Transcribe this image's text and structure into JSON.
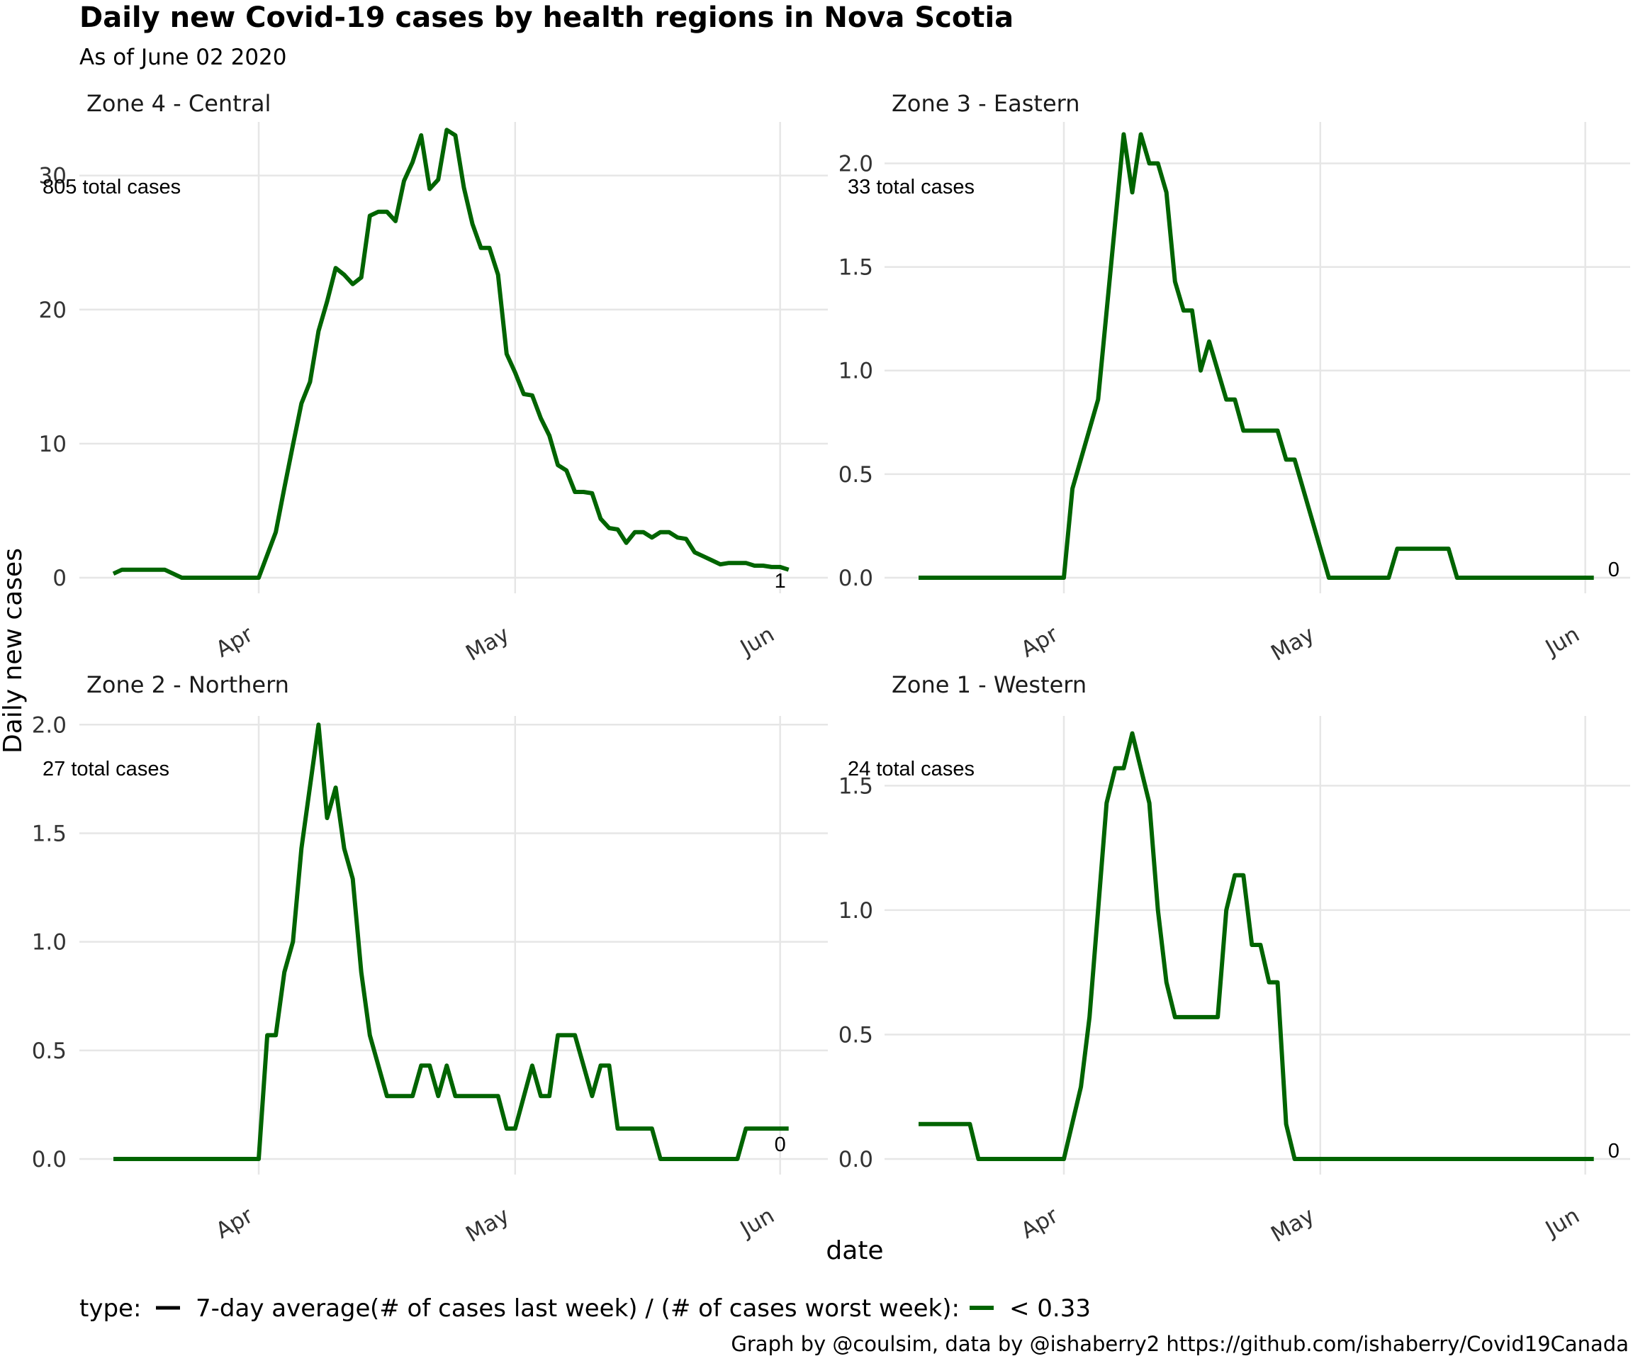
{
  "title": "Daily new Covid-19 cases by health regions in Nova Scotia",
  "subtitle": "As of June 02 2020",
  "ylabel": "Daily new cases",
  "xlabel": "date",
  "caption": "Graph by @coulsim, data by @ishaberry2 https://github.com/ishaberry/Covid19Canada",
  "legend": {
    "type_title": "type:",
    "type_label": "7-day average",
    "ratio_title": "(# of cases last week) / (# of cases worst week):",
    "ratio_label": "< 0.33",
    "type_color": "#000000",
    "ratio_color": "#006400"
  },
  "colors": {
    "series": "#006400",
    "grid": "#e6e6e6"
  },
  "chart_data": [
    {
      "type": "line",
      "panel": "Zone 4 - Central",
      "annotation": "805 total cases",
      "end_label": "1",
      "x_range": [
        "2020-03-15",
        "2020-06-02"
      ],
      "ylim": [
        0,
        34
      ],
      "y_ticks": [
        0,
        10,
        20,
        30
      ],
      "y_tick_labels": [
        "0",
        "10",
        "20",
        "30"
      ],
      "x_ticks": [
        "2020-04-01",
        "2020-05-01",
        "2020-06-01"
      ],
      "x_tick_labels": [
        "Apr",
        "May",
        "Jun"
      ],
      "points": [
        [
          "2020-03-15",
          0.3
        ],
        [
          "2020-03-16",
          0.6
        ],
        [
          "2020-03-21",
          0.6
        ],
        [
          "2020-03-23",
          0.0
        ],
        [
          "2020-04-01",
          0.0
        ],
        [
          "2020-04-03",
          3.4
        ],
        [
          "2020-04-04",
          6.7
        ],
        [
          "2020-04-05",
          9.9
        ],
        [
          "2020-04-06",
          13.0
        ],
        [
          "2020-04-07",
          14.6
        ],
        [
          "2020-04-08",
          18.4
        ],
        [
          "2020-04-09",
          20.6
        ],
        [
          "2020-04-10",
          23.1
        ],
        [
          "2020-04-11",
          22.6
        ],
        [
          "2020-04-12",
          21.9
        ],
        [
          "2020-04-13",
          22.4
        ],
        [
          "2020-04-14",
          27.0
        ],
        [
          "2020-04-15",
          27.3
        ],
        [
          "2020-04-16",
          27.3
        ],
        [
          "2020-04-17",
          26.6
        ],
        [
          "2020-04-18",
          29.6
        ],
        [
          "2020-04-19",
          31.0
        ],
        [
          "2020-04-20",
          33.0
        ],
        [
          "2020-04-21",
          29.0
        ],
        [
          "2020-04-22",
          29.7
        ],
        [
          "2020-04-23",
          33.4
        ],
        [
          "2020-04-24",
          33.0
        ],
        [
          "2020-04-25",
          29.1
        ],
        [
          "2020-04-26",
          26.4
        ],
        [
          "2020-04-27",
          24.6
        ],
        [
          "2020-04-28",
          24.6
        ],
        [
          "2020-04-29",
          22.6
        ],
        [
          "2020-04-30",
          16.7
        ],
        [
          "2020-05-01",
          15.3
        ],
        [
          "2020-05-02",
          13.7
        ],
        [
          "2020-05-03",
          13.6
        ],
        [
          "2020-05-04",
          11.9
        ],
        [
          "2020-05-05",
          10.6
        ],
        [
          "2020-05-06",
          8.4
        ],
        [
          "2020-05-07",
          8.0
        ],
        [
          "2020-05-08",
          6.4
        ],
        [
          "2020-05-09",
          6.4
        ],
        [
          "2020-05-10",
          6.3
        ],
        [
          "2020-05-11",
          4.4
        ],
        [
          "2020-05-12",
          3.7
        ],
        [
          "2020-05-13",
          3.6
        ],
        [
          "2020-05-14",
          2.6
        ],
        [
          "2020-05-15",
          3.4
        ],
        [
          "2020-05-16",
          3.4
        ],
        [
          "2020-05-17",
          3.0
        ],
        [
          "2020-05-18",
          3.4
        ],
        [
          "2020-05-19",
          3.4
        ],
        [
          "2020-05-20",
          3.0
        ],
        [
          "2020-05-21",
          2.9
        ],
        [
          "2020-05-22",
          1.9
        ],
        [
          "2020-05-23",
          1.6
        ],
        [
          "2020-05-24",
          1.3
        ],
        [
          "2020-05-25",
          1.0
        ],
        [
          "2020-05-26",
          1.1
        ],
        [
          "2020-05-28",
          1.1
        ],
        [
          "2020-05-29",
          0.9
        ],
        [
          "2020-05-30",
          0.9
        ],
        [
          "2020-05-31",
          0.8
        ],
        [
          "2020-06-01",
          0.8
        ],
        [
          "2020-06-02",
          0.6
        ]
      ]
    },
    {
      "type": "line",
      "panel": "Zone 3 - Eastern",
      "annotation": "33 total cases",
      "end_label": "0",
      "x_range": [
        "2020-03-15",
        "2020-06-02"
      ],
      "ylim": [
        0,
        2.2
      ],
      "y_ticks": [
        0,
        0.5,
        1,
        1.5,
        2
      ],
      "y_tick_labels": [
        "0.0",
        "0.5",
        "1.0",
        "1.5",
        "2.0"
      ],
      "x_ticks": [
        "2020-04-01",
        "2020-05-01",
        "2020-06-01"
      ],
      "x_tick_labels": [
        "Apr",
        "May",
        "Jun"
      ],
      "points": [
        [
          "2020-03-15",
          0
        ],
        [
          "2020-04-01",
          0
        ],
        [
          "2020-04-02",
          0.43
        ],
        [
          "2020-04-05",
          0.86
        ],
        [
          "2020-04-08",
          2.14
        ],
        [
          "2020-04-09",
          1.86
        ],
        [
          "2020-04-10",
          2.14
        ],
        [
          "2020-04-11",
          2.0
        ],
        [
          "2020-04-12",
          2.0
        ],
        [
          "2020-04-13",
          1.86
        ],
        [
          "2020-04-14",
          1.43
        ],
        [
          "2020-04-15",
          1.29
        ],
        [
          "2020-04-16",
          1.29
        ],
        [
          "2020-04-17",
          1.0
        ],
        [
          "2020-04-18",
          1.14
        ],
        [
          "2020-04-20",
          0.86
        ],
        [
          "2020-04-21",
          0.86
        ],
        [
          "2020-04-22",
          0.71
        ],
        [
          "2020-04-26",
          0.71
        ],
        [
          "2020-04-27",
          0.57
        ],
        [
          "2020-04-28",
          0.57
        ],
        [
          "2020-05-02",
          0
        ],
        [
          "2020-05-09",
          0
        ],
        [
          "2020-05-10",
          0.14
        ],
        [
          "2020-05-16",
          0.14
        ],
        [
          "2020-05-17",
          0
        ],
        [
          "2020-06-02",
          0
        ]
      ]
    },
    {
      "type": "line",
      "panel": "Zone 2 - Northern",
      "annotation": "27 total cases",
      "end_label": "0",
      "x_range": [
        "2020-03-15",
        "2020-06-02"
      ],
      "ylim": [
        0,
        2.0
      ],
      "y_ticks": [
        0,
        0.5,
        1,
        1.5,
        2
      ],
      "y_tick_labels": [
        "0.0",
        "0.5",
        "1.0",
        "1.5",
        "2.0"
      ],
      "x_ticks": [
        "2020-04-01",
        "2020-05-01",
        "2020-06-01"
      ],
      "x_tick_labels": [
        "Apr",
        "May",
        "Jun"
      ],
      "points": [
        [
          "2020-03-15",
          0
        ],
        [
          "2020-04-01",
          0
        ],
        [
          "2020-04-02",
          0.57
        ],
        [
          "2020-04-03",
          0.57
        ],
        [
          "2020-04-04",
          0.86
        ],
        [
          "2020-04-05",
          1.0
        ],
        [
          "2020-04-06",
          1.43
        ],
        [
          "2020-04-08",
          2.0
        ],
        [
          "2020-04-09",
          1.57
        ],
        [
          "2020-04-10",
          1.71
        ],
        [
          "2020-04-11",
          1.43
        ],
        [
          "2020-04-12",
          1.29
        ],
        [
          "2020-04-13",
          0.86
        ],
        [
          "2020-04-14",
          0.57
        ],
        [
          "2020-04-16",
          0.29
        ],
        [
          "2020-04-19",
          0.29
        ],
        [
          "2020-04-20",
          0.43
        ],
        [
          "2020-04-21",
          0.43
        ],
        [
          "2020-04-22",
          0.29
        ],
        [
          "2020-04-23",
          0.43
        ],
        [
          "2020-04-24",
          0.29
        ],
        [
          "2020-04-29",
          0.29
        ],
        [
          "2020-04-30",
          0.14
        ],
        [
          "2020-05-01",
          0.14
        ],
        [
          "2020-05-03",
          0.43
        ],
        [
          "2020-05-04",
          0.29
        ],
        [
          "2020-05-05",
          0.29
        ],
        [
          "2020-05-06",
          0.57
        ],
        [
          "2020-05-08",
          0.57
        ],
        [
          "2020-05-10",
          0.29
        ],
        [
          "2020-05-11",
          0.43
        ],
        [
          "2020-05-12",
          0.43
        ],
        [
          "2020-05-13",
          0.14
        ],
        [
          "2020-05-17",
          0.14
        ],
        [
          "2020-05-18",
          0
        ],
        [
          "2020-05-27",
          0
        ],
        [
          "2020-05-28",
          0.14
        ],
        [
          "2020-06-02",
          0.14
        ]
      ]
    },
    {
      "type": "line",
      "panel": "Zone 1 - Western",
      "annotation": "24 total cases",
      "end_label": "0",
      "x_range": [
        "2020-03-15",
        "2020-06-02"
      ],
      "ylim": [
        0,
        1.75
      ],
      "y_ticks": [
        0,
        0.5,
        1,
        1.5
      ],
      "y_tick_labels": [
        "0.0",
        "0.5",
        "1.0",
        "1.5"
      ],
      "x_ticks": [
        "2020-04-01",
        "2020-05-01",
        "2020-06-01"
      ],
      "x_tick_labels": [
        "Apr",
        "May",
        "Jun"
      ],
      "points": [
        [
          "2020-03-15",
          0.14
        ],
        [
          "2020-03-21",
          0.14
        ],
        [
          "2020-03-22",
          0
        ],
        [
          "2020-04-01",
          0
        ],
        [
          "2020-04-03",
          0.29
        ],
        [
          "2020-04-04",
          0.57
        ],
        [
          "2020-04-05",
          1.0
        ],
        [
          "2020-04-06",
          1.43
        ],
        [
          "2020-04-07",
          1.57
        ],
        [
          "2020-04-08",
          1.57
        ],
        [
          "2020-04-09",
          1.71
        ],
        [
          "2020-04-11",
          1.43
        ],
        [
          "2020-04-12",
          1.0
        ],
        [
          "2020-04-13",
          0.71
        ],
        [
          "2020-04-14",
          0.57
        ],
        [
          "2020-04-19",
          0.57
        ],
        [
          "2020-04-20",
          1.0
        ],
        [
          "2020-04-21",
          1.14
        ],
        [
          "2020-04-22",
          1.14
        ],
        [
          "2020-04-23",
          0.86
        ],
        [
          "2020-04-24",
          0.86
        ],
        [
          "2020-04-25",
          0.71
        ],
        [
          "2020-04-26",
          0.71
        ],
        [
          "2020-04-27",
          0.14
        ],
        [
          "2020-04-28",
          0
        ],
        [
          "2020-06-02",
          0
        ]
      ]
    }
  ]
}
